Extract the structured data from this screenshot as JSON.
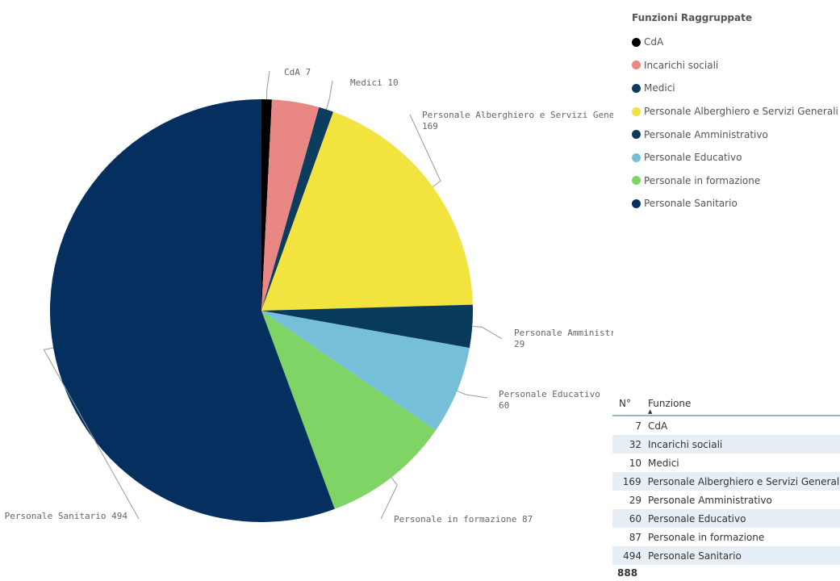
{
  "chart_data": {
    "type": "pie",
    "categories": [
      "CdA",
      "Incarichi sociali",
      "Medici",
      "Personale Alberghiero e Servizi Generali",
      "Personale Amministrativo",
      "Personale Educativo",
      "Personale in formazione",
      "Personale Sanitario"
    ],
    "values": [
      7,
      32,
      10,
      169,
      29,
      60,
      87,
      494
    ],
    "colors": [
      "#000000",
      "#e88784",
      "#0c3d5e",
      "#f2e33e",
      "#073a5b",
      "#75bfd8",
      "#7fd465",
      "#052f5f"
    ],
    "slice_labels": [
      {
        "name": "CdA",
        "value": "7"
      },
      {
        "name": "Incarichi sociali",
        "value": ""
      },
      {
        "name": "Medici",
        "value": "10"
      },
      {
        "name": "Personale Alberghiero e Servizi Generali",
        "value": "169"
      },
      {
        "name": "Personale Amministra...",
        "value": "29"
      },
      {
        "name": "Personale Educativo",
        "value": "60"
      },
      {
        "name": "Personale in formazione",
        "value": "87"
      },
      {
        "name": "Personale Sanitario",
        "value": "494"
      }
    ],
    "legend": {
      "title": "Funzioni Raggruppate",
      "position": "top-right",
      "items": [
        "CdA",
        "Incarichi sociali",
        "Medici",
        "Personale Alberghiero e Servizi Generali",
        "Personale Amministrativo",
        "Personale Educativo",
        "Personale in formazione",
        "Personale Sanitario"
      ]
    }
  },
  "table": {
    "headers": {
      "n": "N°",
      "funzione": "Funzione"
    },
    "sort_icon": "sort-ascending-icon",
    "rows": [
      {
        "n": "7",
        "funzione": "CdA"
      },
      {
        "n": "32",
        "funzione": "Incarichi sociali"
      },
      {
        "n": "10",
        "funzione": "Medici"
      },
      {
        "n": "169",
        "funzione": "Personale Alberghiero e Servizi Generali"
      },
      {
        "n": "29",
        "funzione": "Personale Amministrativo"
      },
      {
        "n": "60",
        "funzione": "Personale Educativo"
      },
      {
        "n": "87",
        "funzione": "Personale in formazione"
      },
      {
        "n": "494",
        "funzione": "Personale Sanitario"
      }
    ],
    "total": "888"
  }
}
